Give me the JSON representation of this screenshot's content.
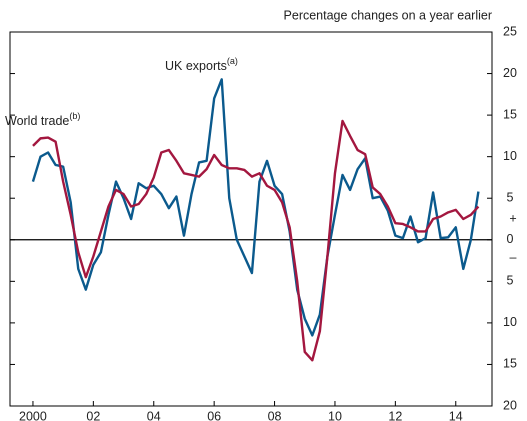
{
  "chart_data": {
    "type": "line",
    "title": "Percentage changes on a year earlier",
    "x": [
      2000,
      2000.25,
      2000.5,
      2000.75,
      2001,
      2001.25,
      2001.5,
      2001.75,
      2002,
      2002.25,
      2002.5,
      2002.75,
      2003,
      2003.25,
      2003.5,
      2003.75,
      2004,
      2004.25,
      2004.5,
      2004.75,
      2005,
      2005.25,
      2005.5,
      2005.75,
      2006,
      2006.25,
      2006.5,
      2006.75,
      2007,
      2007.25,
      2007.5,
      2007.75,
      2008,
      2008.25,
      2008.5,
      2008.75,
      2009,
      2009.25,
      2009.5,
      2009.75,
      2010,
      2010.25,
      2010.5,
      2010.75,
      2011,
      2011.25,
      2011.5,
      2011.75,
      2012,
      2012.25,
      2012.5,
      2012.75,
      2013,
      2013.25,
      2013.5,
      2013.75,
      2014,
      2014.25,
      2014.5,
      2014.75
    ],
    "series": [
      {
        "name": "UK exports",
        "footnote": "(a)",
        "color": "#0b5a8d",
        "values": [
          7,
          10,
          10.5,
          9,
          8.8,
          4.5,
          -3.5,
          -6,
          -3,
          -1.5,
          3,
          7,
          5,
          2.5,
          6.8,
          6.2,
          6.5,
          5.5,
          3.8,
          5.2,
          0.5,
          5.5,
          9.3,
          9.5,
          17,
          19.3,
          5,
          0,
          -2,
          -4,
          7,
          9.5,
          6.5,
          5.5,
          1,
          -6,
          -9.5,
          -11.5,
          -9,
          -2,
          3,
          7.8,
          6,
          8.5,
          9.8,
          5,
          5.2,
          3.5,
          0.5,
          0.2,
          2.8,
          -0.3,
          0.2,
          5.7,
          0.2,
          0.3,
          1.5,
          -3.5,
          0,
          5.8
        ]
      },
      {
        "name": "World trade",
        "footnote": "(b)",
        "color": "#a3173f",
        "values": [
          11.3,
          12.2,
          12.3,
          11.8,
          7,
          3,
          -1.5,
          -4.5,
          -2,
          1,
          4,
          6,
          5.5,
          4,
          4.3,
          5.5,
          7.5,
          10.5,
          10.8,
          9.5,
          8,
          7.8,
          7.6,
          8.5,
          10.2,
          9,
          8.6,
          8.6,
          8.4,
          7.6,
          8,
          6.5,
          6,
          4.5,
          1.5,
          -5,
          -13.5,
          -14.5,
          -11,
          -2,
          8,
          14.3,
          12.5,
          10.8,
          10.3,
          6.3,
          5.5,
          4,
          2,
          1.9,
          1.5,
          1,
          1,
          2.5,
          2.8,
          3.3,
          3.6,
          2.5,
          3,
          4
        ]
      }
    ],
    "xlim": [
      1999.24,
      2015.2
    ],
    "xticks": [
      {
        "value": 2000,
        "label": "2000"
      },
      {
        "value": 2002,
        "label": "02"
      },
      {
        "value": 2004,
        "label": "04"
      },
      {
        "value": 2006,
        "label": "06"
      },
      {
        "value": 2008,
        "label": "08"
      },
      {
        "value": 2010,
        "label": "10"
      },
      {
        "value": 2012,
        "label": "12"
      },
      {
        "value": 2014,
        "label": "14"
      }
    ],
    "ylim": [
      -20,
      25
    ],
    "yticks": [
      25,
      20,
      15,
      10,
      5,
      0,
      {
        "value": -5,
        "label": "5"
      },
      {
        "value": -10,
        "label": "10"
      },
      {
        "value": -15,
        "label": "15"
      },
      {
        "value": -20,
        "label": "20"
      }
    ],
    "sign_labels": [
      "+",
      "–"
    ],
    "zero_line": true,
    "grid": false
  }
}
